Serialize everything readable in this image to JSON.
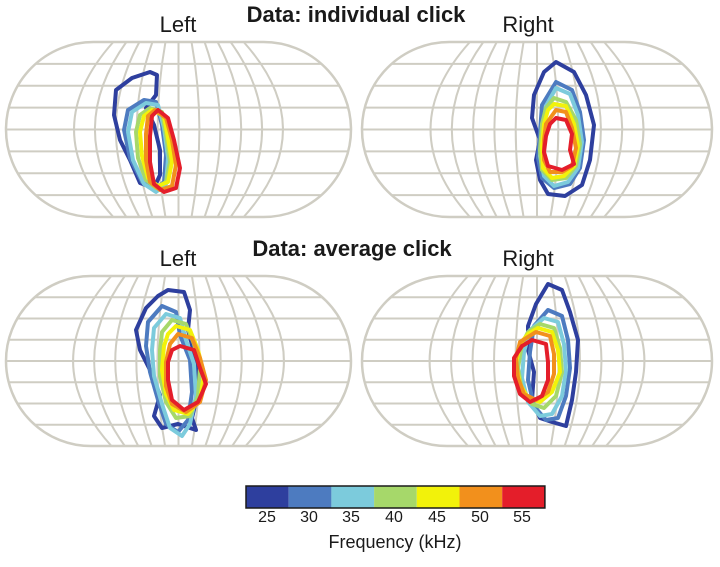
{
  "panels": [
    {
      "id": "individual",
      "heading": "Data: individual click",
      "left_label": "Left",
      "right_label": "Right"
    },
    {
      "id": "average",
      "heading": "Data: average click",
      "left_label": "Left",
      "right_label": "Right"
    }
  ],
  "colorbar": {
    "title": "Frequency (kHz)",
    "ticks": [
      "25",
      "30",
      "35",
      "40",
      "45",
      "50",
      "55"
    ],
    "colors": [
      "#2e3f9e",
      "#4d7bc0",
      "#7ccbdc",
      "#a6d86a",
      "#f2f20a",
      "#f2901c",
      "#e41e2a"
    ]
  },
  "grid_color": "#cfcdc3"
}
